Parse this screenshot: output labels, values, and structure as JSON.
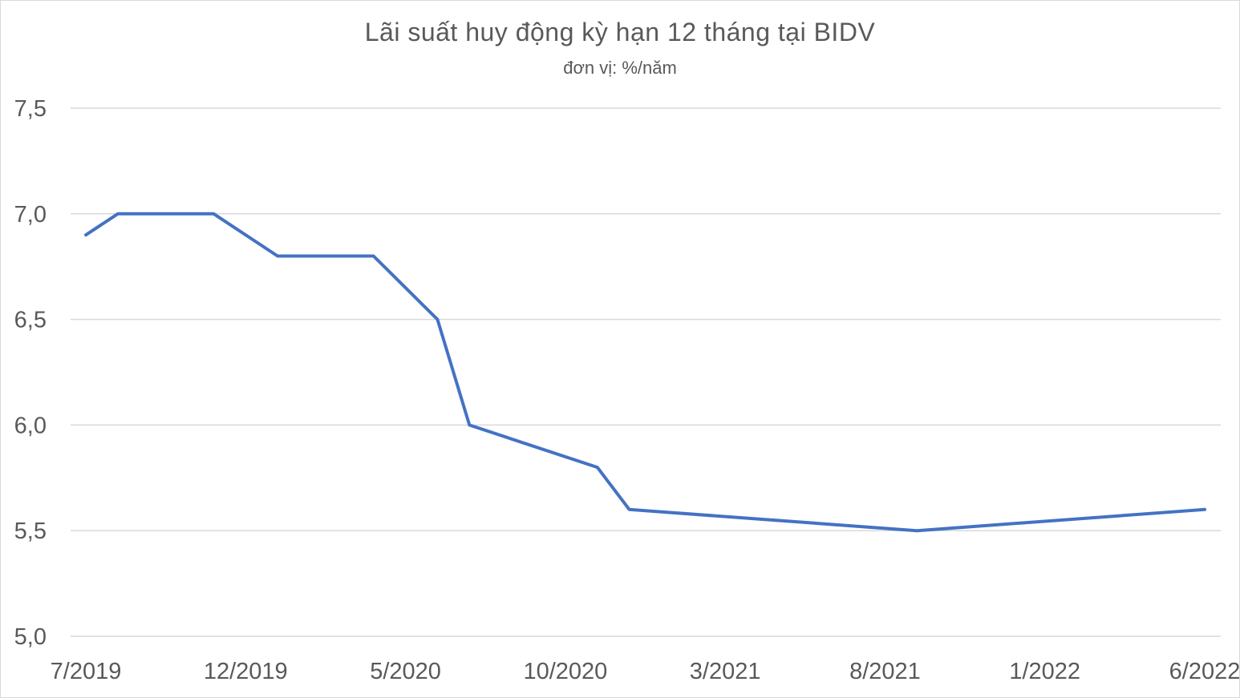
{
  "chart_data": {
    "type": "line",
    "title": "Lãi suất huy động kỳ hạn 12 tháng tại BIDV",
    "subtitle": "đơn vị: %/năm",
    "xlabel": "",
    "ylabel": "",
    "ylim": [
      5.0,
      7.5
    ],
    "ytick_labels": [
      "5,0",
      "5,5",
      "6,0",
      "6,5",
      "7,0",
      "7,5"
    ],
    "ytick_values": [
      5.0,
      5.5,
      6.0,
      6.5,
      7.0,
      7.5
    ],
    "xlim": [
      "2019-07",
      "2022-06"
    ],
    "xtick_labels": [
      "7/2019",
      "12/2019",
      "5/2020",
      "10/2020",
      "3/2021",
      "8/2021",
      "1/2022",
      "6/2022"
    ],
    "xtick_values": [
      "2019-07",
      "2019-12",
      "2020-05",
      "2020-10",
      "2021-03",
      "2021-08",
      "2022-01",
      "2022-06"
    ],
    "grid": true,
    "line_color": "#4472c4",
    "series": [
      {
        "x": [
          "2019-07",
          "2019-08",
          "2019-11",
          "2020-01",
          "2020-04",
          "2020-06",
          "2020-07",
          "2020-11",
          "2020-12",
          "2021-09",
          "2022-06"
        ],
        "values": [
          6.9,
          7.0,
          7.0,
          6.8,
          6.8,
          6.5,
          6.0,
          5.8,
          5.6,
          5.5,
          5.6
        ]
      }
    ]
  }
}
